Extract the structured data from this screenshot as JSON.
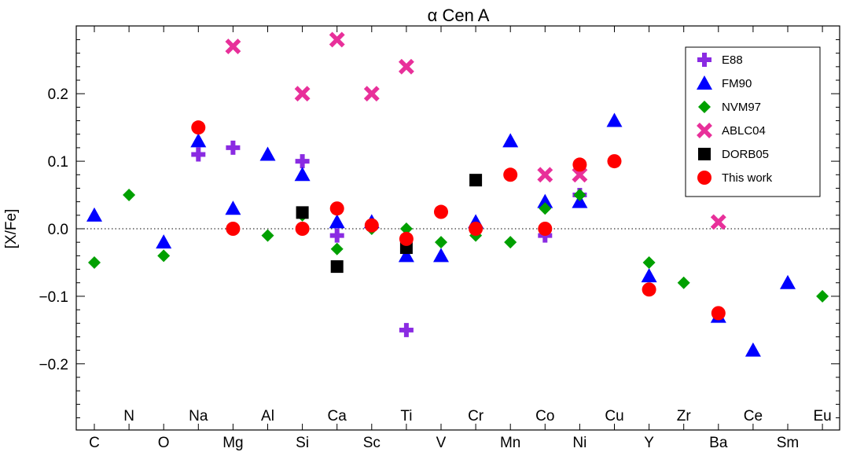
{
  "chart_data": {
    "type": "scatter",
    "title": "α Cen A",
    "ylabel": "[X/Fe]",
    "xlabel": "",
    "ylim": [
      -0.3,
      0.3
    ],
    "yticks": [
      -0.2,
      -0.1,
      0.0,
      0.1,
      0.2
    ],
    "ytick_labels": [
      "−0.2",
      "−0.1",
      "0.0",
      "0.1",
      "0.2"
    ],
    "elements_bottom": [
      "C",
      "O",
      "Mg",
      "Si",
      "Sc",
      "V",
      "Mn",
      "Ni",
      "Y",
      "Ba",
      "Sm"
    ],
    "elements_top": [
      "N",
      "Na",
      "Al",
      "Ca",
      "Ti",
      "Cr",
      "Co",
      "Cu",
      "Zr",
      "Ce",
      "Eu"
    ],
    "element_order": [
      "C",
      "N",
      "O",
      "Na",
      "Mg",
      "Al",
      "Si",
      "Ca",
      "Sc",
      "Ti",
      "V",
      "Cr",
      "Mn",
      "Co",
      "Ni",
      "Cu",
      "Y",
      "Zr",
      "Ba",
      "Ce",
      "Sm",
      "Eu"
    ],
    "zero_line": true,
    "legend_position": "top-right",
    "series": [
      {
        "name": "E88",
        "marker": "plus",
        "color": "#8a2be2",
        "points": [
          [
            "Na",
            0.11
          ],
          [
            "Mg",
            0.12
          ],
          [
            "Si",
            0.1
          ],
          [
            "Ca",
            -0.01
          ],
          [
            "Ti",
            -0.15
          ],
          [
            "Co",
            -0.01
          ],
          [
            "Ni",
            0.05
          ]
        ]
      },
      {
        "name": "FM90",
        "marker": "triangle",
        "color": "#0000ff",
        "points": [
          [
            "C",
            0.02
          ],
          [
            "O",
            -0.02
          ],
          [
            "Na",
            0.13
          ],
          [
            "Mg",
            0.03
          ],
          [
            "Al",
            0.11
          ],
          [
            "Si",
            0.08
          ],
          [
            "Ca",
            0.01
          ],
          [
            "Sc",
            0.01
          ],
          [
            "Ti",
            -0.04
          ],
          [
            "V",
            -0.04
          ],
          [
            "Cr",
            0.01
          ],
          [
            "Mn",
            0.13
          ],
          [
            "Co",
            0.04
          ],
          [
            "Ni",
            0.04
          ],
          [
            "Cu",
            0.16
          ],
          [
            "Y",
            -0.07
          ],
          [
            "Ba",
            -0.13
          ],
          [
            "Ce",
            -0.18
          ],
          [
            "Sm",
            -0.08
          ]
        ]
      },
      {
        "name": "NVM97",
        "marker": "diamond",
        "color": "#00a000",
        "points": [
          [
            "C",
            -0.05
          ],
          [
            "N",
            0.05
          ],
          [
            "O",
            -0.04
          ],
          [
            "Al",
            -0.01
          ],
          [
            "Si",
            0.02
          ],
          [
            "Ca",
            -0.03
          ],
          [
            "Sc",
            0.0
          ],
          [
            "Ti",
            0.0
          ],
          [
            "V",
            -0.02
          ],
          [
            "Cr",
            -0.01
          ],
          [
            "Mn",
            -0.02
          ],
          [
            "Co",
            0.03
          ],
          [
            "Ni",
            0.05
          ],
          [
            "Y",
            -0.05
          ],
          [
            "Zr",
            -0.08
          ],
          [
            "Eu",
            -0.1
          ]
        ]
      },
      {
        "name": "ABLC04",
        "marker": "x",
        "color": "#e8309a",
        "points": [
          [
            "Mg",
            0.27
          ],
          [
            "Si",
            0.2
          ],
          [
            "Ca",
            0.28
          ],
          [
            "Sc",
            0.2
          ],
          [
            "Ti",
            0.24
          ],
          [
            "Co",
            0.08
          ],
          [
            "Ni",
            0.08
          ],
          [
            "Ba",
            0.01
          ]
        ]
      },
      {
        "name": "DORB05",
        "marker": "square",
        "color": "#000000",
        "points": [
          [
            "Si",
            0.024
          ],
          [
            "Ca",
            -0.056
          ],
          [
            "Ti",
            -0.028
          ],
          [
            "Cr",
            0.072
          ]
        ]
      },
      {
        "name": "This work",
        "marker": "circle",
        "color": "#ff0000",
        "points": [
          [
            "Na",
            0.15
          ],
          [
            "Mg",
            0.0
          ],
          [
            "Si",
            0.0
          ],
          [
            "Ca",
            0.03
          ],
          [
            "Sc",
            0.005
          ],
          [
            "Ti",
            -0.015
          ],
          [
            "V",
            0.025
          ],
          [
            "Cr",
            0.0
          ],
          [
            "Mn",
            0.08
          ],
          [
            "Co",
            0.0
          ],
          [
            "Ni",
            0.095
          ],
          [
            "Cu",
            0.1
          ],
          [
            "Y",
            -0.09
          ],
          [
            "Ba",
            -0.125
          ]
        ]
      }
    ]
  }
}
